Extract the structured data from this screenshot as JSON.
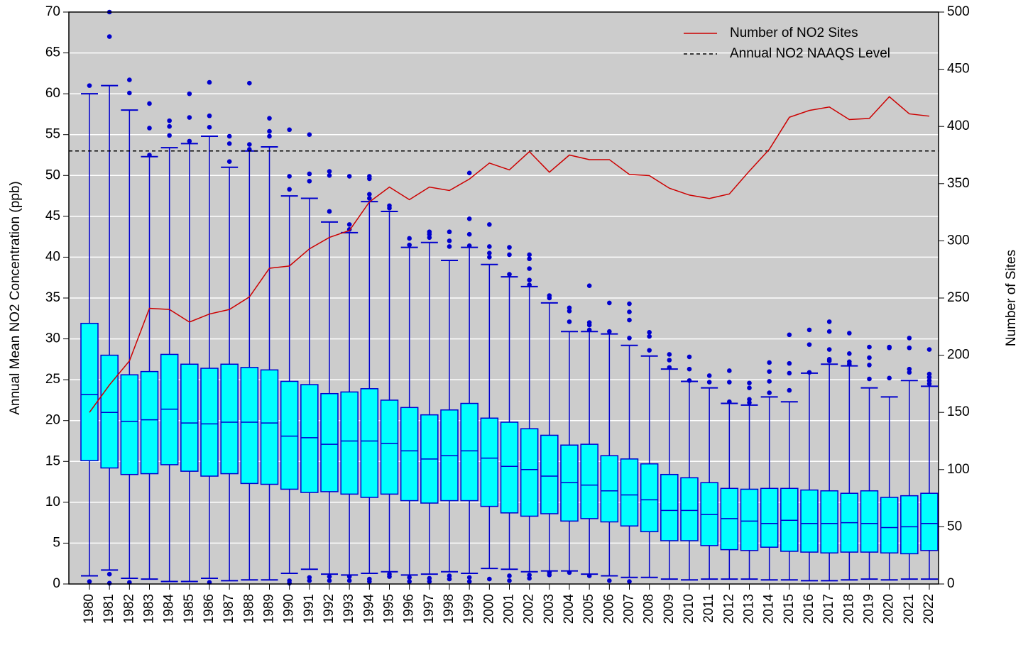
{
  "chart_data": {
    "type": "box",
    "ylabel": "Annual Mean NO2 Concentration (ppb)",
    "y2label": "Number of Sites",
    "categories": [
      "1980",
      "1981",
      "1982",
      "1983",
      "1984",
      "1985",
      "1986",
      "1987",
      "1988",
      "1989",
      "1990",
      "1991",
      "1992",
      "1993",
      "1994",
      "1995",
      "1996",
      "1997",
      "1998",
      "1999",
      "2000",
      "2001",
      "2002",
      "2003",
      "2004",
      "2005",
      "2006",
      "2007",
      "2008",
      "2009",
      "2010",
      "2011",
      "2012",
      "2013",
      "2014",
      "2015",
      "2016",
      "2017",
      "2018",
      "2019",
      "2020",
      "2021",
      "2022"
    ],
    "box_color": "#00ffff",
    "box_edge_color": "#0000cd",
    "background": "#cccccc",
    "grid": true,
    "legend": "upper right",
    "ylim": [
      0,
      70
    ],
    "yticks": [
      0,
      5,
      10,
      15,
      20,
      25,
      30,
      35,
      40,
      45,
      50,
      55,
      60,
      65,
      70
    ],
    "y2lim": [
      0,
      500
    ],
    "y2ticks": [
      0,
      50,
      100,
      150,
      200,
      250,
      300,
      350,
      400,
      450,
      500
    ],
    "boxes": [
      {
        "whislo": 1.0,
        "q1": 15.1,
        "med": 23.2,
        "q3": 31.9,
        "whishi": 60,
        "fliers": [
          61,
          0.3
        ]
      },
      {
        "whislo": 1.7,
        "q1": 14.2,
        "med": 21,
        "q3": 28,
        "whishi": 61,
        "fliers": [
          70,
          67,
          1.2,
          0.1
        ]
      },
      {
        "whislo": 0.7,
        "q1": 13.4,
        "med": 19.9,
        "q3": 25.6,
        "whishi": 58,
        "fliers": [
          61.7,
          60.1,
          0.2
        ]
      },
      {
        "whislo": 0.6,
        "q1": 13.5,
        "med": 20.1,
        "q3": 26,
        "whishi": 52.3,
        "fliers": [
          58.8,
          55.8,
          52.5
        ]
      },
      {
        "whislo": 0.3,
        "q1": 14.6,
        "med": 21.4,
        "q3": 28.1,
        "whishi": 53.4,
        "fliers": [
          56.7,
          56,
          54.9
        ]
      },
      {
        "whislo": 0.3,
        "q1": 13.8,
        "med": 19.7,
        "q3": 26.9,
        "whishi": 53.9,
        "fliers": [
          60,
          57.1,
          54.2
        ]
      },
      {
        "whislo": 0.7,
        "q1": 13.2,
        "med": 19.6,
        "q3": 26.4,
        "whishi": 54.8,
        "fliers": [
          61.4,
          57.3,
          55.9,
          0.2
        ]
      },
      {
        "whislo": 0.4,
        "q1": 13.5,
        "med": 19.8,
        "q3": 26.9,
        "whishi": 51,
        "fliers": [
          54.8,
          53.9,
          51.7
        ]
      },
      {
        "whislo": 0.5,
        "q1": 12.3,
        "med": 19.8,
        "q3": 26.5,
        "whishi": 53,
        "fliers": [
          61.3,
          53.8,
          53.2
        ]
      },
      {
        "whislo": 0.5,
        "q1": 12.2,
        "med": 19.7,
        "q3": 26.2,
        "whishi": 53.5,
        "fliers": [
          57,
          55.4,
          54.8
        ]
      },
      {
        "whislo": 1.3,
        "q1": 11.6,
        "med": 18.1,
        "q3": 24.8,
        "whishi": 47.5,
        "fliers": [
          55.6,
          49.9,
          48.3,
          0.4,
          0.1
        ]
      },
      {
        "whislo": 1.8,
        "q1": 11.2,
        "med": 17.9,
        "q3": 24.4,
        "whishi": 47.2,
        "fliers": [
          55,
          50.2,
          49.3,
          0.8,
          0.4
        ]
      },
      {
        "whislo": 1.2,
        "q1": 11.3,
        "med": 17.1,
        "q3": 23.3,
        "whishi": 44.3,
        "fliers": [
          50.5,
          50,
          45.6,
          0.9,
          0.4
        ]
      },
      {
        "whislo": 1.1,
        "q1": 11,
        "med": 17.5,
        "q3": 23.5,
        "whishi": 43,
        "fliers": [
          49.9,
          44,
          43.4,
          0.9,
          0.4
        ]
      },
      {
        "whislo": 1.3,
        "q1": 10.6,
        "med": 17.5,
        "q3": 23.9,
        "whishi": 46.8,
        "fliers": [
          49.9,
          49.6,
          47.7,
          47.2,
          0.6,
          0.3
        ]
      },
      {
        "whislo": 1.5,
        "q1": 11,
        "med": 17.2,
        "q3": 22.5,
        "whishi": 45.6,
        "fliers": [
          46.3,
          46,
          1.2,
          0.9
        ]
      },
      {
        "whislo": 1.1,
        "q1": 10.2,
        "med": 16.3,
        "q3": 21.6,
        "whishi": 41.2,
        "fliers": [
          42.3,
          41.5,
          0.8,
          0.3
        ]
      },
      {
        "whislo": 1.2,
        "q1": 9.9,
        "med": 15.3,
        "q3": 20.7,
        "whishi": 41.8,
        "fliers": [
          43.1,
          42.8,
          42.4,
          0.7,
          0.3
        ]
      },
      {
        "whislo": 1.5,
        "q1": 10.2,
        "med": 15.7,
        "q3": 21.3,
        "whishi": 39.6,
        "fliers": [
          43.1,
          42,
          41.3,
          1.0,
          0.6
        ]
      },
      {
        "whislo": 1.3,
        "q1": 10.2,
        "med": 16.3,
        "q3": 22.1,
        "whishi": 41.2,
        "fliers": [
          50.3,
          44.7,
          42.8,
          41.4,
          0.8,
          0.3
        ]
      },
      {
        "whislo": 1.9,
        "q1": 9.5,
        "med": 15.4,
        "q3": 20.3,
        "whishi": 39.1,
        "fliers": [
          44,
          41.3,
          40.5,
          40,
          0.6
        ]
      },
      {
        "whislo": 1.8,
        "q1": 8.7,
        "med": 14.4,
        "q3": 19.8,
        "whishi": 37.6,
        "fliers": [
          41.2,
          40.3,
          37.9,
          1.0,
          0.4
        ]
      },
      {
        "whislo": 1.5,
        "q1": 8.3,
        "med": 14,
        "q3": 19,
        "whishi": 36.4,
        "fliers": [
          40.3,
          39.8,
          38.6,
          37.2,
          36.6,
          1.1,
          0.7
        ]
      },
      {
        "whislo": 1.6,
        "q1": 8.6,
        "med": 13.2,
        "q3": 18.2,
        "whishi": 34.4,
        "fliers": [
          35.3,
          35,
          1.4,
          1.1
        ]
      },
      {
        "whislo": 1.6,
        "q1": 7.7,
        "med": 12.4,
        "q3": 17,
        "whishi": 30.9,
        "fliers": [
          33.8,
          33.4,
          32.1,
          1.4
        ]
      },
      {
        "whislo": 1.2,
        "q1": 8,
        "med": 12.1,
        "q3": 17.1,
        "whishi": 30.9,
        "fliers": [
          36.5,
          32,
          31.7,
          31.1,
          1.0
        ]
      },
      {
        "whislo": 1.0,
        "q1": 7.6,
        "med": 11.4,
        "q3": 15.7,
        "whishi": 30.6,
        "fliers": [
          34.4,
          30.9,
          0.4
        ]
      },
      {
        "whislo": 0.8,
        "q1": 7.1,
        "med": 10.9,
        "q3": 15.3,
        "whishi": 29.2,
        "fliers": [
          34.3,
          33.3,
          32.3,
          30.1,
          0.3
        ]
      },
      {
        "whislo": 0.8,
        "q1": 6.4,
        "med": 10.3,
        "q3": 14.7,
        "whishi": 27.9,
        "fliers": [
          30.8,
          30.3,
          28.6
        ]
      },
      {
        "whislo": 0.6,
        "q1": 5.3,
        "med": 9,
        "q3": 13.4,
        "whishi": 26.3,
        "fliers": [
          28.1,
          27.4,
          26.5
        ]
      },
      {
        "whislo": 0.5,
        "q1": 5.3,
        "med": 9,
        "q3": 13,
        "whishi": 24.8,
        "fliers": [
          27.8,
          26.3,
          24.9
        ]
      },
      {
        "whislo": 0.6,
        "q1": 4.7,
        "med": 8.5,
        "q3": 12.4,
        "whishi": 24,
        "fliers": [
          25.5,
          24.7
        ]
      },
      {
        "whislo": 0.6,
        "q1": 4.2,
        "med": 8,
        "q3": 11.7,
        "whishi": 22.1,
        "fliers": [
          26.1,
          24.7,
          22.3
        ]
      },
      {
        "whislo": 0.6,
        "q1": 4.1,
        "med": 7.7,
        "q3": 11.6,
        "whishi": 21.9,
        "fliers": [
          24.6,
          24,
          22.6,
          22.2
        ]
      },
      {
        "whislo": 0.5,
        "q1": 4.5,
        "med": 7.4,
        "q3": 11.7,
        "whishi": 22.9,
        "fliers": [
          27.1,
          26,
          24.8,
          23.4
        ]
      },
      {
        "whislo": 0.5,
        "q1": 4,
        "med": 7.8,
        "q3": 11.7,
        "whishi": 22.3,
        "fliers": [
          30.5,
          27,
          25.8,
          23.7
        ]
      },
      {
        "whislo": 0.4,
        "q1": 3.9,
        "med": 7.4,
        "q3": 11.5,
        "whishi": 25.8,
        "fliers": [
          31.1,
          29.3,
          25.9
        ]
      },
      {
        "whislo": 0.4,
        "q1": 3.8,
        "med": 7.4,
        "q3": 11.4,
        "whishi": 26.9,
        "fliers": [
          32.1,
          30.9,
          28.7,
          27.5,
          27.3
        ]
      },
      {
        "whislo": 0.5,
        "q1": 3.9,
        "med": 7.5,
        "q3": 11.1,
        "whishi": 26.7,
        "fliers": [
          30.7,
          28.2,
          27.2,
          26.9
        ]
      },
      {
        "whislo": 0.6,
        "q1": 3.9,
        "med": 7.4,
        "q3": 11.4,
        "whishi": 24,
        "fliers": [
          29,
          27.7,
          26.8,
          25.1
        ]
      },
      {
        "whislo": 0.5,
        "q1": 3.8,
        "med": 6.9,
        "q3": 10.6,
        "whishi": 22.9,
        "fliers": [
          29,
          28.9,
          25.2
        ]
      },
      {
        "whislo": 0.6,
        "q1": 3.7,
        "med": 7,
        "q3": 10.8,
        "whishi": 24.9,
        "fliers": [
          30.1,
          28.9,
          26.3,
          25.9
        ]
      },
      {
        "whislo": 0.6,
        "q1": 4.1,
        "med": 7.4,
        "q3": 11.1,
        "whishi": 24.2,
        "fliers": [
          28.7,
          25.7,
          25.3,
          24.9,
          24.5
        ]
      }
    ],
    "lines": [
      {
        "name": "Number of NO2 Sites",
        "color": "#cc0000",
        "axis": "y2",
        "values": [
          150,
          174,
          195,
          241,
          240,
          229,
          236,
          240,
          251,
          276,
          278,
          293,
          303,
          309,
          334,
          347,
          336,
          347,
          344,
          354,
          368,
          362,
          378,
          360,
          375,
          371,
          371,
          358,
          357,
          346,
          340,
          337,
          341,
          361,
          380,
          408,
          414,
          417,
          406,
          407,
          426,
          411,
          409
        ]
      }
    ],
    "reference_lines": [
      {
        "name": "Annual NO2 NAAQS Level",
        "color": "#000000",
        "style": "dashed",
        "value": 53
      }
    ]
  }
}
